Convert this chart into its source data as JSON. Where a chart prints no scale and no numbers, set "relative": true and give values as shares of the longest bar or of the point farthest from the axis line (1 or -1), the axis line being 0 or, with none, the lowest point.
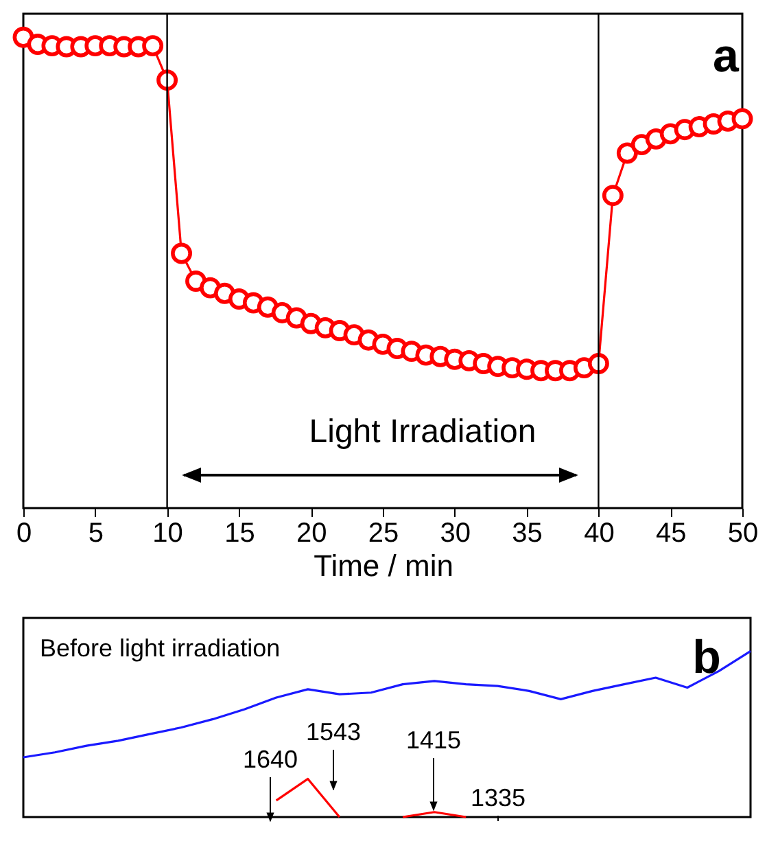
{
  "chart_data": [
    {
      "type": "line",
      "xlabel": "Time / min",
      "relative": true,
      "marker": "circle",
      "line_style": "solid",
      "tick_labels": "x",
      "xlim": [
        0,
        50
      ],
      "xticks": [
        0,
        5,
        10,
        15,
        20,
        25,
        30,
        35,
        40,
        45,
        50
      ],
      "x": [
        0,
        1,
        2,
        3,
        4,
        5,
        6,
        7,
        8,
        9,
        10,
        11,
        12,
        13,
        14,
        15,
        16,
        17,
        18,
        19,
        20,
        21,
        22,
        23,
        24,
        25,
        26,
        27,
        28,
        29,
        30,
        31,
        32,
        33,
        34,
        35,
        36,
        37,
        38,
        39,
        40,
        41,
        42,
        43,
        44,
        45,
        46,
        47,
        48,
        49,
        50
      ],
      "series": [
        {
          "color": "#ff0000",
          "values": [
            1.0,
            0.985,
            0.982,
            0.98,
            0.98,
            0.982,
            0.982,
            0.98,
            0.98,
            0.982,
            0.909,
            0.541,
            0.482,
            0.468,
            0.456,
            0.444,
            0.436,
            0.427,
            0.415,
            0.404,
            0.392,
            0.383,
            0.377,
            0.368,
            0.357,
            0.348,
            0.339,
            0.333,
            0.325,
            0.322,
            0.316,
            0.313,
            0.307,
            0.301,
            0.298,
            0.295,
            0.292,
            0.292,
            0.292,
            0.298,
            0.307,
            0.664,
            0.754,
            0.772,
            0.784,
            0.795,
            0.804,
            0.81,
            0.816,
            0.822,
            0.827
          ]
        }
      ],
      "ref_lines": [
        {
          "axis": "x",
          "value": 10,
          "color": "#000000"
        },
        {
          "axis": "x",
          "value": 40,
          "color": "#000000"
        }
      ],
      "annotations": [
        "a",
        "Light Irradiation"
      ]
    },
    {
      "type": "line",
      "relative": true,
      "marker": "none",
      "line_style": "solid",
      "tick_labels": false,
      "categories": [
        null,
        null,
        null,
        null,
        null,
        null,
        null,
        null,
        null,
        null,
        null,
        null,
        null,
        null,
        null,
        null,
        null,
        null,
        null,
        null,
        null,
        null,
        null,
        null
      ],
      "series": [
        {
          "color": "#1a1aff",
          "values": [
            0.36,
            0.39,
            0.43,
            0.46,
            0.5,
            0.54,
            0.59,
            0.65,
            0.72,
            0.77,
            0.74,
            0.75,
            0.8,
            0.82,
            0.8,
            0.79,
            0.76,
            0.71,
            0.76,
            0.8,
            0.84,
            0.78,
            0.88,
            1.0
          ]
        },
        {
          "color": "#ff0000",
          "values": [
            null,
            null,
            null,
            null,
            null,
            null,
            null,
            null,
            0.1,
            0.23,
            0.0,
            null,
            0.0,
            0.03,
            0.0,
            null,
            null,
            null,
            null,
            null,
            null,
            null,
            null,
            null
          ]
        }
      ],
      "annotations": [
        "b",
        "Before light irradiation",
        "1640",
        "1543",
        "1415",
        "1335"
      ]
    }
  ]
}
